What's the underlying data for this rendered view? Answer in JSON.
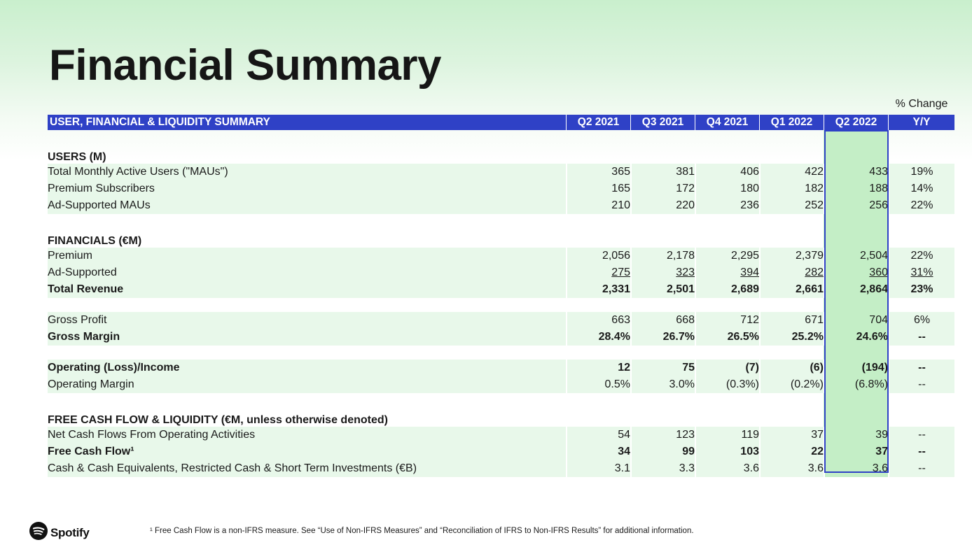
{
  "title": "Financial Summary",
  "pct_change_label": "% Change",
  "table": {
    "header_label": "USER, FINANCIAL & LIQUIDITY SUMMARY",
    "columns": [
      "Q2 2021",
      "Q3 2021",
      "Q4 2021",
      "Q1 2022",
      "Q2 2022",
      "Y/Y"
    ]
  },
  "sections": {
    "users": {
      "title": "USERS (M)",
      "rows": [
        {
          "label": "Total Monthly Active Users (\"MAUs\")",
          "values": [
            "365",
            "381",
            "406",
            "422",
            "433"
          ],
          "yy": "19%"
        },
        {
          "label": "Premium Subscribers",
          "values": [
            "165",
            "172",
            "180",
            "182",
            "188"
          ],
          "yy": "14%"
        },
        {
          "label": "Ad-Supported MAUs",
          "values": [
            "210",
            "220",
            "236",
            "252",
            "256"
          ],
          "yy": "22%"
        }
      ]
    },
    "financials": {
      "title": "FINANCIALS (€M)",
      "rows": [
        {
          "label": "Premium",
          "values": [
            "2,056",
            "2,178",
            "2,295",
            "2,379",
            "2,504"
          ],
          "yy": "22%"
        },
        {
          "label": "Ad-Supported",
          "values": [
            "275",
            "323",
            "394",
            "282",
            "360"
          ],
          "yy": "31%"
        },
        {
          "label": "Total Revenue",
          "values": [
            "2,331",
            "2,501",
            "2,689",
            "2,661",
            "2,864"
          ],
          "yy": "23%"
        }
      ],
      "profit_rows": [
        {
          "label": "Gross Profit",
          "values": [
            "663",
            "668",
            "712",
            "671",
            "704"
          ],
          "yy": "6%"
        },
        {
          "label": "Gross Margin",
          "values": [
            "28.4%",
            "26.7%",
            "26.5%",
            "25.2%",
            "24.6%"
          ],
          "yy": "--"
        }
      ],
      "operating_rows": [
        {
          "label": "Operating (Loss)/Income",
          "values": [
            "12",
            "75",
            "(7)",
            "(6)",
            "(194)"
          ],
          "yy": "--"
        },
        {
          "label": "Operating Margin",
          "values": [
            "0.5%",
            "3.0%",
            "(0.3%)",
            "(0.2%)",
            "(6.8%)"
          ],
          "yy": "--"
        }
      ]
    },
    "cash_flow": {
      "title": "FREE CASH FLOW & LIQUIDITY (€M, unless otherwise denoted)",
      "rows": [
        {
          "label": "Net Cash Flows From Operating Activities",
          "values": [
            "54",
            "123",
            "119",
            "37",
            "39"
          ],
          "yy": "--"
        },
        {
          "label": "Free Cash Flow¹",
          "values": [
            "34",
            "99",
            "103",
            "22",
            "37"
          ],
          "yy": "--"
        },
        {
          "label": "Cash & Cash Equivalents, Restricted Cash & Short Term Investments (€B)",
          "values": [
            "3.1",
            "3.3",
            "3.6",
            "3.6",
            "3.6"
          ],
          "yy": "--"
        }
      ]
    }
  },
  "footer": {
    "logo_text": "Spotify",
    "footnote": "¹ Free Cash Flow is a non-IFRS measure. See “Use of Non-IFRS Measures” and “Reconciliation of IFRS to Non-IFRS Results” for additional information."
  },
  "colors": {
    "header_blue": "#2f41c6",
    "row_green": "#e8f8ea",
    "highlight_green": "#c4eec6",
    "spotify_logo": "#111111"
  }
}
